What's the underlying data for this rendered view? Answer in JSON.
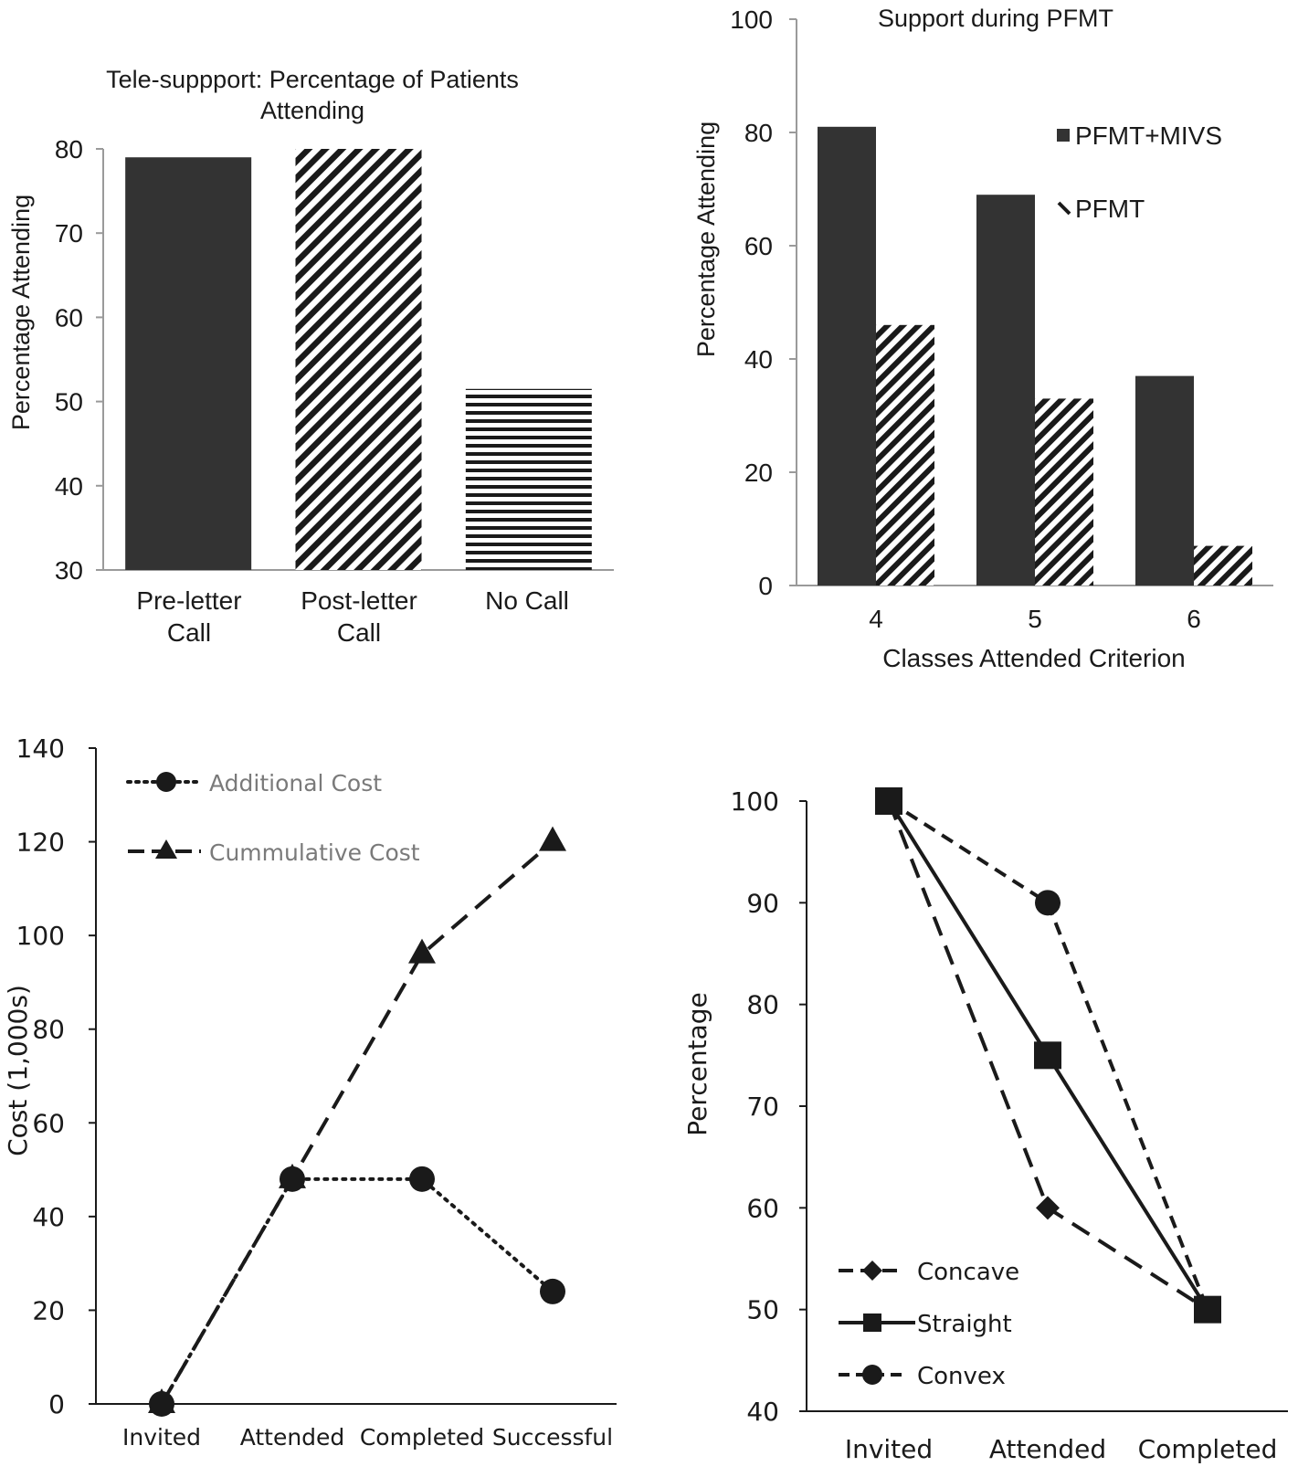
{
  "colors": {
    "dark": "#333333",
    "axis": "#9a9a9a",
    "text": "#1a1a1a",
    "legend_gray": "#7a7a7a",
    "line": "#1a1a1a"
  },
  "chart_data": [
    {
      "type": "bar",
      "title": "Tele-suppport: Percentage of Patients Attending",
      "title_lines": [
        "Tele-suppport: Percentage of Patients",
        "Attending"
      ],
      "ylabel": "Percentage Attending",
      "xlabel": "",
      "ylim": [
        30,
        80
      ],
      "yticks": [
        30,
        40,
        50,
        60,
        70,
        80
      ],
      "categories": [
        "Pre-letter Call",
        "Post-letter Call",
        "No Call"
      ],
      "category_lines": [
        [
          "Pre-letter",
          "Call"
        ],
        [
          "Post-letter",
          "Call"
        ],
        [
          "No Call"
        ]
      ],
      "values": [
        79,
        80,
        51.5
      ],
      "patterns": [
        "solid",
        "diagonal",
        "horizontal"
      ]
    },
    {
      "type": "bar",
      "title": "Support during PFMT",
      "ylabel": "Percentage Attending",
      "xlabel": "Classes Attended Criterion",
      "ylim": [
        0,
        100
      ],
      "yticks": [
        0,
        20,
        40,
        60,
        80,
        100
      ],
      "categories": [
        "4",
        "5",
        "6"
      ],
      "series": [
        {
          "name": "PFMT+MIVS",
          "values": [
            81,
            69,
            37
          ],
          "pattern": "solid"
        },
        {
          "name": "PFMT",
          "values": [
            46,
            33,
            7
          ],
          "pattern": "diagonal"
        }
      ],
      "legend_position": "top-right"
    },
    {
      "type": "line",
      "title": "",
      "ylabel": "Cost (1,000s)",
      "xlabel": "",
      "ylim": [
        0,
        140
      ],
      "yticks": [
        0,
        20,
        40,
        60,
        80,
        100,
        120,
        140
      ],
      "categories": [
        "Invited",
        "Attended",
        "Completed",
        "Successful"
      ],
      "series": [
        {
          "name": "Additional Cost",
          "values": [
            0,
            48,
            48,
            24
          ],
          "marker": "circle",
          "dash": "dotted"
        },
        {
          "name": "Cummulative Cost",
          "values": [
            0,
            48,
            96,
            120
          ],
          "marker": "triangle",
          "dash": "dashed"
        }
      ],
      "legend_position": "top-left"
    },
    {
      "type": "line",
      "title": "",
      "ylabel": "Percentage",
      "xlabel": "",
      "ylim": [
        40,
        100
      ],
      "yticks": [
        40,
        50,
        60,
        70,
        80,
        90,
        100
      ],
      "categories": [
        "Invited",
        "Attended",
        "Completed"
      ],
      "series": [
        {
          "name": "Concave",
          "values": [
            100,
            60,
            50
          ],
          "marker": "diamond",
          "dash": "dashed"
        },
        {
          "name": "Straight",
          "values": [
            100,
            75,
            50
          ],
          "marker": "square",
          "dash": "solid"
        },
        {
          "name": "Convex",
          "values": [
            100,
            90,
            50
          ],
          "marker": "circle",
          "dash": "shortdash"
        }
      ],
      "legend_position": "bottom-left"
    }
  ]
}
